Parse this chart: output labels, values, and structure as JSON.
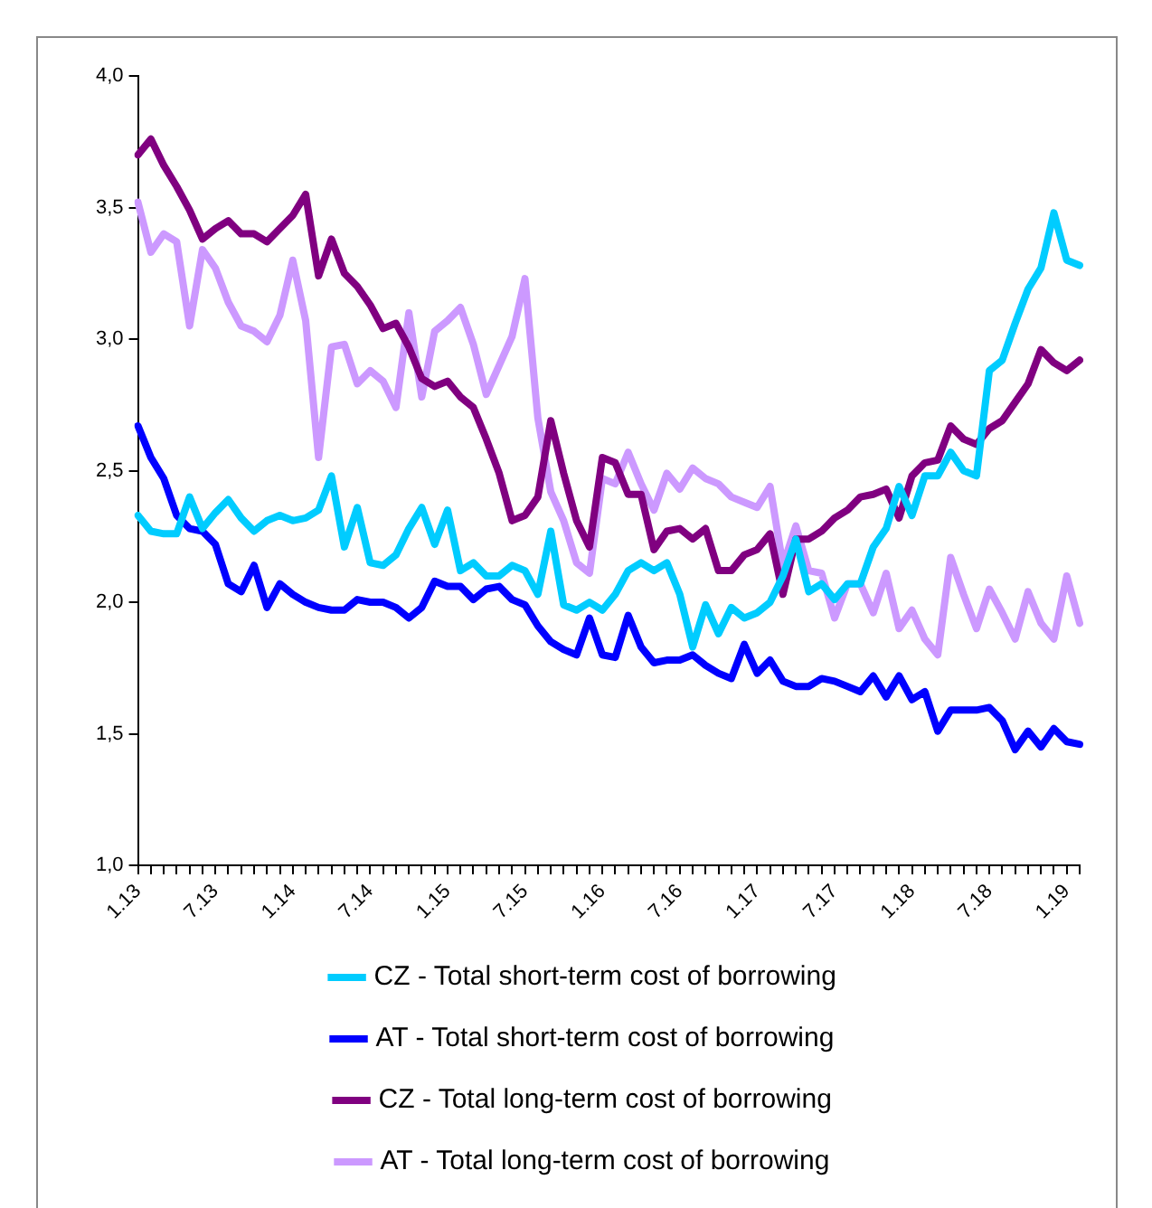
{
  "chart_data": {
    "type": "line",
    "categories": [
      "1.13",
      null,
      null,
      null,
      null,
      null,
      "7.13",
      null,
      null,
      null,
      null,
      null,
      "1.14",
      null,
      null,
      null,
      null,
      null,
      "7.14",
      null,
      null,
      null,
      null,
      null,
      "1.15",
      null,
      null,
      null,
      null,
      null,
      "7.15",
      null,
      null,
      null,
      null,
      null,
      "1.16",
      null,
      null,
      null,
      null,
      null,
      "7.16",
      null,
      null,
      null,
      null,
      null,
      "1.17",
      null,
      null,
      null,
      null,
      null,
      "7.17",
      null,
      null,
      null,
      null,
      null,
      "1.18",
      null,
      null,
      null,
      null,
      null,
      "7.18",
      null,
      null,
      null,
      null,
      null,
      "1.19",
      null
    ],
    "series": [
      {
        "name": "CZ - Total short-term cost of borrowing",
        "color": "#00ccff",
        "values": [
          2.33,
          2.27,
          2.26,
          2.26,
          2.4,
          2.28,
          2.34,
          2.39,
          2.32,
          2.27,
          2.31,
          2.33,
          2.31,
          2.32,
          2.35,
          2.48,
          2.21,
          2.36,
          2.15,
          2.14,
          2.18,
          2.28,
          2.36,
          2.22,
          2.35,
          2.12,
          2.15,
          2.1,
          2.1,
          2.14,
          2.12,
          2.03,
          2.27,
          1.99,
          1.97,
          2.0,
          1.97,
          2.03,
          2.12,
          2.15,
          2.12,
          2.15,
          2.03,
          1.83,
          1.99,
          1.88,
          1.98,
          1.94,
          1.96,
          2.0,
          2.1,
          2.24,
          2.04,
          2.07,
          2.01,
          2.07,
          2.07,
          2.21,
          2.28,
          2.44,
          2.33,
          2.48,
          2.48,
          2.57,
          2.5,
          2.48,
          2.88,
          2.92,
          3.06,
          3.19,
          3.27,
          3.48,
          3.3,
          3.28
        ]
      },
      {
        "name": "AT - Total short-term cost of borrowing",
        "color": "#0000ff",
        "values": [
          2.67,
          2.55,
          2.47,
          2.33,
          2.28,
          2.27,
          2.22,
          2.07,
          2.04,
          2.14,
          1.98,
          2.07,
          2.03,
          2.0,
          1.98,
          1.97,
          1.97,
          2.01,
          2.0,
          2.0,
          1.98,
          1.94,
          1.98,
          2.08,
          2.06,
          2.06,
          2.01,
          2.05,
          2.06,
          2.01,
          1.99,
          1.91,
          1.85,
          1.82,
          1.8,
          1.94,
          1.8,
          1.79,
          1.95,
          1.83,
          1.77,
          1.78,
          1.78,
          1.8,
          1.76,
          1.73,
          1.71,
          1.84,
          1.73,
          1.78,
          1.7,
          1.68,
          1.68,
          1.71,
          1.7,
          1.68,
          1.66,
          1.72,
          1.64,
          1.72,
          1.63,
          1.66,
          1.51,
          1.59,
          1.59,
          1.59,
          1.6,
          1.55,
          1.44,
          1.51,
          1.45,
          1.52,
          1.47,
          1.46
        ]
      },
      {
        "name": "CZ - Total long-term cost of borrowing",
        "color": "#800080",
        "values": [
          3.7,
          3.76,
          3.66,
          3.58,
          3.49,
          3.38,
          3.42,
          3.45,
          3.4,
          3.4,
          3.37,
          3.42,
          3.47,
          3.55,
          3.24,
          3.38,
          3.25,
          3.2,
          3.13,
          3.04,
          3.06,
          2.97,
          2.85,
          2.82,
          2.84,
          2.78,
          2.74,
          2.62,
          2.49,
          2.31,
          2.33,
          2.4,
          2.69,
          2.49,
          2.31,
          2.21,
          2.55,
          2.53,
          2.41,
          2.41,
          2.2,
          2.27,
          2.28,
          2.24,
          2.28,
          2.12,
          2.12,
          2.18,
          2.2,
          2.26,
          2.03,
          2.24,
          2.24,
          2.27,
          2.32,
          2.35,
          2.4,
          2.41,
          2.43,
          2.32,
          2.48,
          2.53,
          2.54,
          2.67,
          2.62,
          2.6,
          2.66,
          2.69,
          2.76,
          2.83,
          2.96,
          2.91,
          2.88,
          2.92
        ]
      },
      {
        "name": "AT - Total long-term cost of borrowing",
        "color": "#cc99ff",
        "values": [
          3.52,
          3.33,
          3.4,
          3.37,
          3.05,
          3.34,
          3.27,
          3.14,
          3.05,
          3.03,
          2.99,
          3.09,
          3.3,
          3.07,
          2.55,
          2.97,
          2.98,
          2.83,
          2.88,
          2.84,
          2.74,
          3.1,
          2.78,
          3.03,
          3.07,
          3.12,
          2.98,
          2.79,
          2.9,
          3.01,
          3.23,
          2.7,
          2.42,
          2.31,
          2.15,
          2.11,
          2.47,
          2.45,
          2.57,
          2.45,
          2.35,
          2.49,
          2.43,
          2.51,
          2.47,
          2.45,
          2.4,
          2.38,
          2.36,
          2.44,
          2.14,
          2.29,
          2.12,
          2.11,
          1.94,
          2.07,
          2.07,
          1.96,
          2.11,
          1.9,
          1.97,
          1.86,
          1.8,
          2.17,
          2.03,
          1.9,
          2.05,
          1.96,
          1.86,
          2.04,
          1.92,
          1.86,
          2.1,
          1.92
        ]
      }
    ],
    "ylim": [
      1.0,
      4.0
    ],
    "yticks": [
      {
        "value": 1.0,
        "label": "1,0"
      },
      {
        "value": 1.5,
        "label": "1,5"
      },
      {
        "value": 2.0,
        "label": "2,0"
      },
      {
        "value": 2.5,
        "label": "2,5"
      },
      {
        "value": 3.0,
        "label": "3,0"
      },
      {
        "value": 3.5,
        "label": "3,5"
      },
      {
        "value": 4.0,
        "label": "4,0"
      }
    ],
    "grid": false,
    "legend": "bottom",
    "marker": "none",
    "line_style": "solid"
  }
}
